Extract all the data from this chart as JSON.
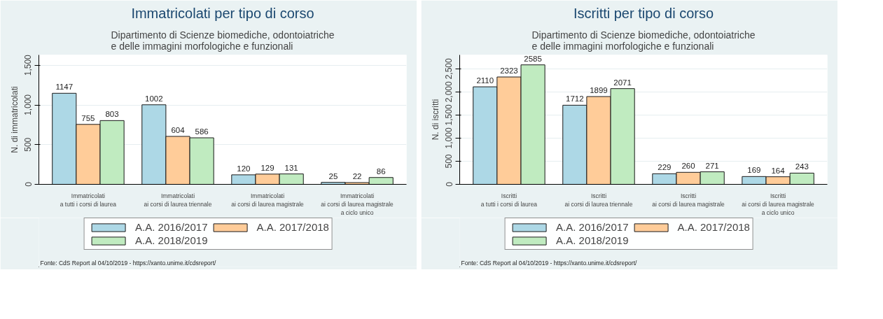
{
  "chart_data": [
    {
      "type": "bar",
      "title": "Immatricolati per tipo di corso",
      "subtitle": "Dipartimento di Scienze biomediche, odontoiatriche\ne delle immagini morfologiche e funzionali",
      "ylabel": "N. di immatricolati",
      "categories": [
        "Immatricolati\na tutti i corsi di laurea",
        "Immatricolati\nai corsi di laurea triennale",
        "Immatricolati\nai corsi di laurea magistrale",
        "Immatricolati\nai corsi di laurea magistrale\na ciclo unico"
      ],
      "series": [
        {
          "name": "A.A. 2016/2017",
          "color": "#add8e6",
          "values": [
            1147,
            1002,
            120,
            25
          ]
        },
        {
          "name": "A.A. 2017/2018",
          "color": "#ffcc99",
          "values": [
            755,
            604,
            129,
            22
          ]
        },
        {
          "name": "A.A. 2018/2019",
          "color": "#c0ebc0",
          "values": [
            803,
            586,
            131,
            86
          ]
        }
      ],
      "ylim": [
        0,
        1630
      ],
      "yticks": [
        0,
        500,
        {
          "value": 1000,
          "label": "1,000"
        },
        {
          "value": 1500,
          "label": "1,500"
        }
      ],
      "grid": "y",
      "legend": "bottom",
      "data_labels": true,
      "annotations": [
        "Fonte: CdS Report al 04/10/2019 - https://xanto.unime.it/cdsreport/"
      ]
    },
    {
      "type": "bar",
      "title": "Iscritti per tipo di corso",
      "subtitle": "Dipartimento di Scienze biomediche, odontoiatriche\ne delle immagini morfologiche e funzionali",
      "ylabel": "N. di iscritti",
      "categories": [
        "Iscritti\na tutti i corsi di laurea",
        "Iscritti\nai corsi di laurea triennale",
        "Iscritti\nai corsi di laurea magistrale",
        "Iscritti\nai corsi di laurea magistrale\na ciclo unico"
      ],
      "series": [
        {
          "name": "A.A. 2016/2017",
          "color": "#add8e6",
          "values": [
            2110,
            1712,
            229,
            169
          ]
        },
        {
          "name": "A.A. 2017/2018",
          "color": "#ffcc99",
          "values": [
            2323,
            1899,
            260,
            164
          ]
        },
        {
          "name": "A.A. 2018/2019",
          "color": "#c0ebc0",
          "values": [
            2585,
            2071,
            271,
            243
          ]
        }
      ],
      "ylim": [
        0,
        2800
      ],
      "yticks": [
        0,
        500,
        {
          "value": 1000,
          "label": "1,000"
        },
        {
          "value": 1500,
          "label": "1,500"
        },
        {
          "value": 2000,
          "label": "2,000"
        },
        {
          "value": 2500,
          "label": "2,500"
        }
      ],
      "grid": "y",
      "legend": "bottom",
      "data_labels": true,
      "annotations": [
        "Fonte: CdS Report al 04/10/2019 - https://xanto.unime.it/cdsreport/"
      ]
    }
  ]
}
